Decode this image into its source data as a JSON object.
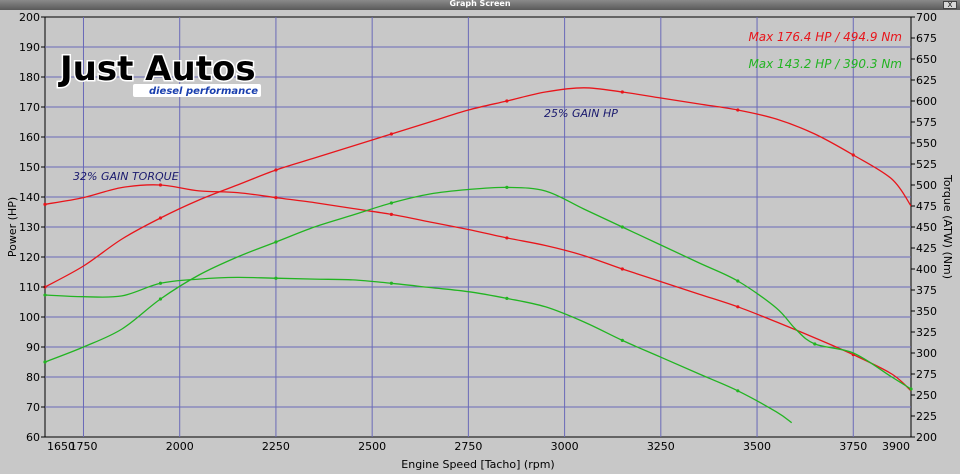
{
  "window": {
    "title": "Graph Screen",
    "close_glyph": "X"
  },
  "logo": {
    "main": "Just Autos",
    "tagline": "diesel performance"
  },
  "legend": {
    "red": {
      "text": "Max 176.4 HP  / 494.9 Nm",
      "color": "#e8151b"
    },
    "green": {
      "text": "Max 143.2 HP  / 390.3 Nm",
      "color": "#22b422"
    }
  },
  "annotations": {
    "torque_gain": "32% GAIN TORQUE",
    "hp_gain": "25% GAIN HP"
  },
  "chart_data": {
    "type": "line",
    "title": "",
    "xlabel": "Engine Speed [Tacho] (rpm)",
    "ylabel": "Power (HP)",
    "y2label": "Torque (ATW) (Nm)",
    "xlim": [
      1650,
      3900
    ],
    "ylim": [
      60,
      200
    ],
    "y2lim": [
      200,
      700
    ],
    "grid": true,
    "x_ticks": [
      1650,
      1750,
      2000,
      2250,
      2500,
      2750,
      3000,
      3250,
      3500,
      3750,
      3900
    ],
    "y_ticks": [
      60,
      70,
      80,
      90,
      100,
      110,
      120,
      130,
      140,
      150,
      160,
      170,
      180,
      190,
      200
    ],
    "y2_ticks": [
      200,
      225,
      250,
      275,
      300,
      325,
      350,
      375,
      400,
      425,
      450,
      475,
      500,
      525,
      550,
      575,
      600,
      625,
      650,
      675,
      700
    ],
    "series": [
      {
        "role": "red_power",
        "axis": "left",
        "color": "#e8151b",
        "x": [
          1650,
          1750,
          1850,
          1950,
          2050,
          2150,
          2250,
          2350,
          2450,
          2550,
          2650,
          2750,
          2850,
          2950,
          3050,
          3150,
          3250,
          3350,
          3450,
          3550,
          3650,
          3750,
          3850,
          3900
        ],
        "y": [
          110,
          117,
          126,
          133,
          139,
          144,
          149,
          153,
          157,
          161,
          165,
          169,
          172,
          175,
          176.4,
          175,
          173,
          171,
          169,
          166,
          161,
          154,
          146,
          137
        ]
      },
      {
        "role": "red_torque",
        "axis": "right",
        "color": "#e8151b",
        "x": [
          1650,
          1750,
          1850,
          1950,
          2050,
          2150,
          2250,
          2350,
          2450,
          2550,
          2650,
          2750,
          2850,
          2950,
          3050,
          3150,
          3250,
          3350,
          3450,
          3550,
          3650,
          3750,
          3850,
          3900
        ],
        "y": [
          477,
          485,
          497,
          500,
          493,
          491,
          485,
          479,
          472,
          465,
          456,
          447,
          437,
          428,
          416,
          400,
          385,
          370,
          355,
          337,
          318,
          298,
          275,
          255
        ]
      },
      {
        "role": "green_power",
        "axis": "left",
        "color": "#22b422",
        "x": [
          1650,
          1750,
          1850,
          1950,
          2050,
          2150,
          2250,
          2350,
          2450,
          2550,
          2650,
          2750,
          2850,
          2950,
          3050,
          3150,
          3250,
          3350,
          3450,
          3550,
          3600,
          3650,
          3750,
          3850,
          3900
        ],
        "y": [
          85,
          90,
          96,
          106,
          114,
          120,
          125,
          130,
          134,
          138,
          141,
          142.5,
          143.2,
          142,
          136,
          130,
          124,
          118,
          112,
          103,
          96,
          91,
          88,
          80,
          76
        ]
      },
      {
        "role": "green_torque",
        "axis": "right",
        "color": "#22b422",
        "x": [
          1650,
          1750,
          1850,
          1950,
          2050,
          2150,
          2250,
          2350,
          2450,
          2550,
          2650,
          2750,
          2850,
          2950,
          3050,
          3150,
          3250,
          3350,
          3450,
          3550,
          3590
        ],
        "y": [
          369,
          367,
          368,
          383,
          388,
          390,
          389,
          388,
          387,
          383,
          378,
          373,
          365,
          355,
          337,
          315,
          295,
          275,
          255,
          230,
          217
        ]
      }
    ]
  }
}
